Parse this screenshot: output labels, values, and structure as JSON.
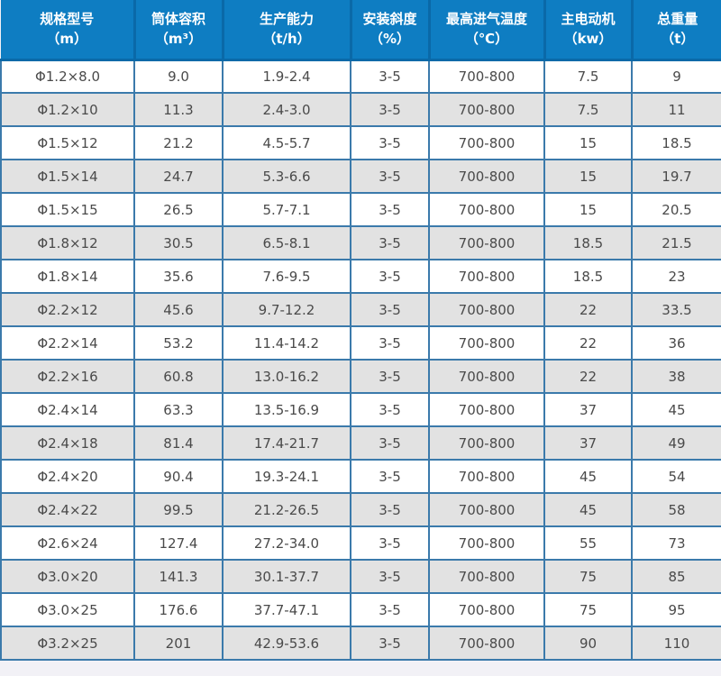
{
  "page": {
    "background": "#f2f1f6"
  },
  "chart_data": {
    "type": "table",
    "title": "",
    "columns": [
      {
        "title": "规格型号",
        "unit": "（m）"
      },
      {
        "title": "筒体容积",
        "unit": "（m³）"
      },
      {
        "title": "生产能力",
        "unit": "（t/h）"
      },
      {
        "title": "安装斜度",
        "unit": "（%）"
      },
      {
        "title": "最高进气温度",
        "unit": "（℃）"
      },
      {
        "title": "主电动机",
        "unit": "（kw）"
      },
      {
        "title": "总重量",
        "unit": "（t）"
      }
    ],
    "rows": [
      [
        "Φ1.2×8.0",
        "9.0",
        "1.9-2.4",
        "3-5",
        "700-800",
        "7.5",
        "9"
      ],
      [
        "Φ1.2×10",
        "11.3",
        "2.4-3.0",
        "3-5",
        "700-800",
        "7.5",
        "11"
      ],
      [
        "Φ1.5×12",
        "21.2",
        "4.5-5.7",
        "3-5",
        "700-800",
        "15",
        "18.5"
      ],
      [
        "Φ1.5×14",
        "24.7",
        "5.3-6.6",
        "3-5",
        "700-800",
        "15",
        "19.7"
      ],
      [
        "Φ1.5×15",
        "26.5",
        "5.7-7.1",
        "3-5",
        "700-800",
        "15",
        "20.5"
      ],
      [
        "Φ1.8×12",
        "30.5",
        "6.5-8.1",
        "3-5",
        "700-800",
        "18.5",
        "21.5"
      ],
      [
        "Φ1.8×14",
        "35.6",
        "7.6-9.5",
        "3-5",
        "700-800",
        "18.5",
        "23"
      ],
      [
        "Φ2.2×12",
        "45.6",
        "9.7-12.2",
        "3-5",
        "700-800",
        "22",
        "33.5"
      ],
      [
        "Φ2.2×14",
        "53.2",
        "11.4-14.2",
        "3-5",
        "700-800",
        "22",
        "36"
      ],
      [
        "Φ2.2×16",
        "60.8",
        "13.0-16.2",
        "3-5",
        "700-800",
        "22",
        "38"
      ],
      [
        "Φ2.4×14",
        "63.3",
        "13.5-16.9",
        "3-5",
        "700-800",
        "37",
        "45"
      ],
      [
        "Φ2.4×18",
        "81.4",
        "17.4-21.7",
        "3-5",
        "700-800",
        "37",
        "49"
      ],
      [
        "Φ2.4×20",
        "90.4",
        "19.3-24.1",
        "3-5",
        "700-800",
        "45",
        "54"
      ],
      [
        "Φ2.4×22",
        "99.5",
        "21.2-26.5",
        "3-5",
        "700-800",
        "45",
        "58"
      ],
      [
        "Φ2.6×24",
        "127.4",
        "27.2-34.0",
        "3-5",
        "700-800",
        "55",
        "73"
      ],
      [
        "Φ3.0×20",
        "141.3",
        "30.1-37.7",
        "3-5",
        "700-800",
        "75",
        "85"
      ],
      [
        "Φ3.0×25",
        "176.6",
        "37.7-47.1",
        "3-5",
        "700-800",
        "75",
        "95"
      ],
      [
        "Φ3.2×25",
        "201",
        "42.9-53.6",
        "3-5",
        "700-800",
        "90",
        "110"
      ]
    ],
    "colors": {
      "header_bg": "#0e7dc2",
      "header_text": "#ffffff",
      "header_divider": "#0a69a8",
      "cell_border": "#3b7aab",
      "row_bg": "#ffffff",
      "row_alt_bg": "#e2e2e2",
      "cell_text": "#4a4a4a"
    }
  }
}
